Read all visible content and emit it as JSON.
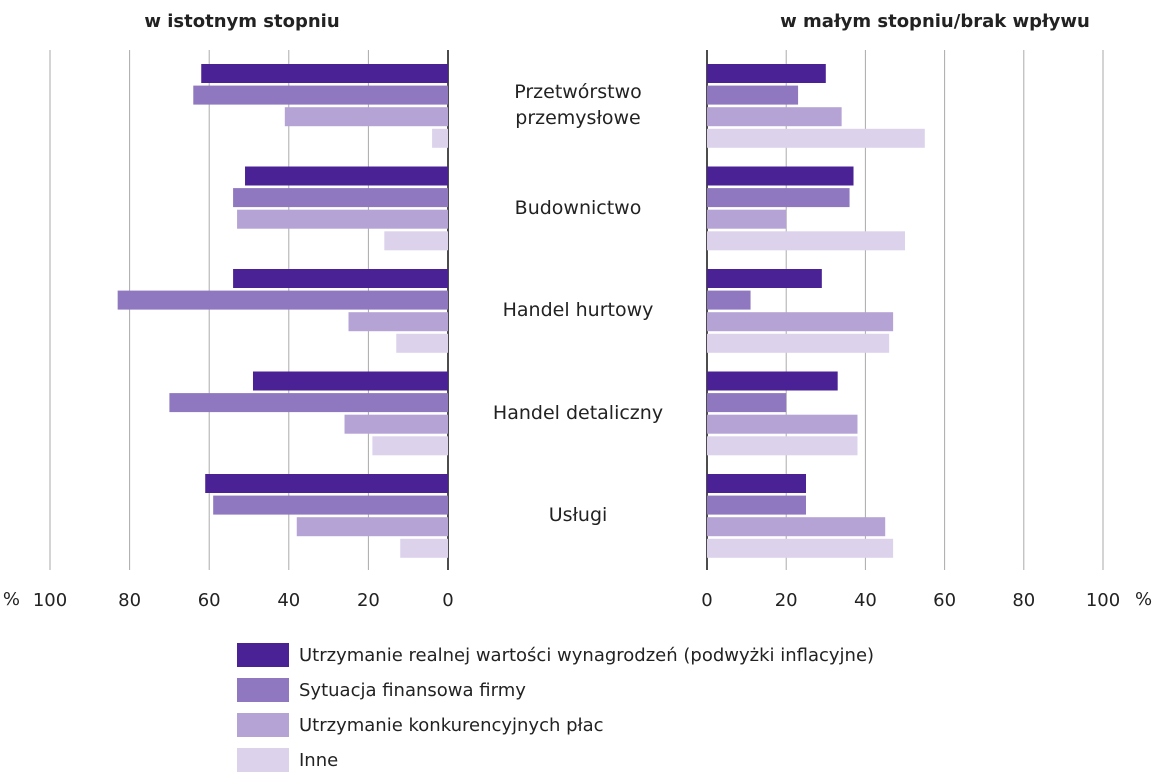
{
  "chart_data": {
    "type": "bar",
    "categories": [
      "Przetwórstwo przemysłowe",
      "Budownictwo",
      "Handel hurtowy",
      "Handel detaliczny",
      "Usługi"
    ],
    "series": [
      {
        "name": "Utrzymanie realnej wartości wynagrodzeń (podwyżki inflacyjne)",
        "color": "#4b2296"
      },
      {
        "name": "Sytuacja finansowa firmy",
        "color": "#8f78c0"
      },
      {
        "name": "Utrzymanie konkurencyjnych płac",
        "color": "#b5a3d6"
      },
      {
        "name": "Inne",
        "color": "#dcd2ec"
      }
    ],
    "unit": "%",
    "panels": [
      {
        "title": "w istotnym stopniu",
        "reversed": true,
        "xlim": [
          0,
          100
        ],
        "xticks": [
          0,
          20,
          40,
          60,
          80,
          100
        ],
        "values": [
          [
            62,
            51,
            54,
            49,
            61
          ],
          [
            64,
            54,
            83,
            70,
            59
          ],
          [
            41,
            53,
            25,
            26,
            38
          ],
          [
            4,
            16,
            13,
            19,
            12
          ]
        ]
      },
      {
        "title": "w małym stopniu/brak wpływu",
        "reversed": false,
        "xlim": [
          0,
          100
        ],
        "xticks": [
          0,
          20,
          40,
          60,
          80,
          100
        ],
        "values": [
          [
            30,
            37,
            29,
            33,
            25
          ],
          [
            23,
            36,
            11,
            20,
            25
          ],
          [
            34,
            20,
            47,
            38,
            45
          ],
          [
            55,
            50,
            46,
            38,
            47
          ]
        ]
      }
    ],
    "grid": true
  }
}
